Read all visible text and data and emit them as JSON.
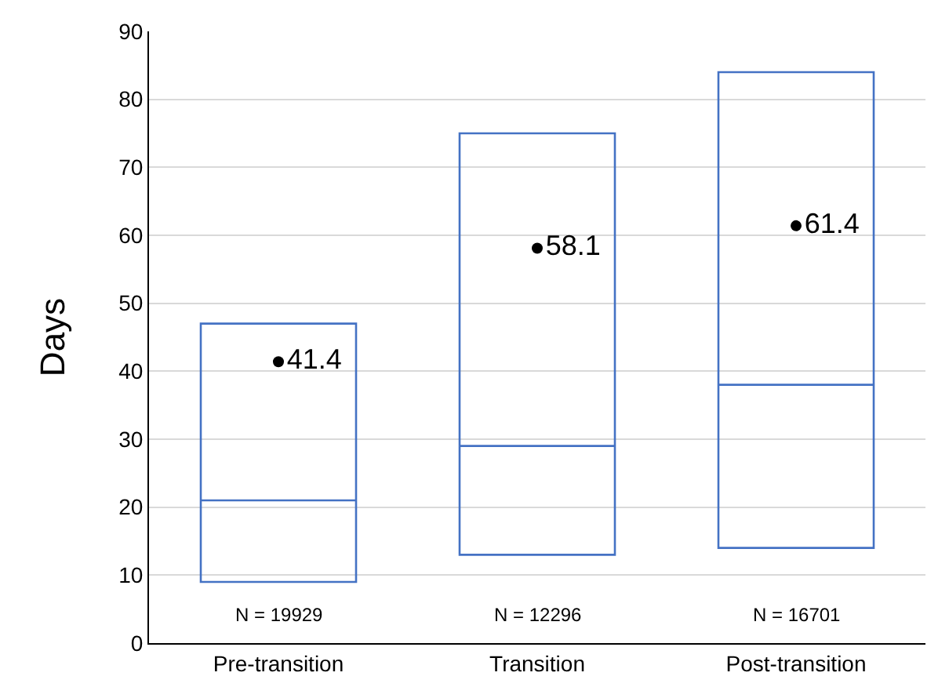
{
  "chart_data": {
    "type": "box",
    "ylabel": "Days",
    "categories": [
      "Pre-transition",
      "Transition",
      "Post-transition"
    ],
    "boxes": [
      {
        "low": 9,
        "q1": 9,
        "median": 21,
        "q3": 47,
        "high": 47
      },
      {
        "low": 13,
        "q1": 13,
        "median": 29,
        "q3": 75,
        "high": 75
      },
      {
        "low": 14,
        "q1": 14,
        "median": 38,
        "q3": 84,
        "high": 84
      }
    ],
    "series": [
      {
        "type": "scatter",
        "color": "#000000",
        "x": [
          "Pre-transition",
          "Transition",
          "Post-transition"
        ],
        "values": [
          41.4,
          58.1,
          61.4
        ]
      }
    ],
    "color": "#4472c4",
    "data_labels": true,
    "annotations": [
      "N = 19929",
      "N = 12296",
      "N = 16701"
    ],
    "ylim": [
      0,
      90
    ],
    "yticks": [
      0,
      10,
      20,
      30,
      40,
      50,
      60,
      70,
      80,
      90
    ],
    "grid": "y"
  }
}
